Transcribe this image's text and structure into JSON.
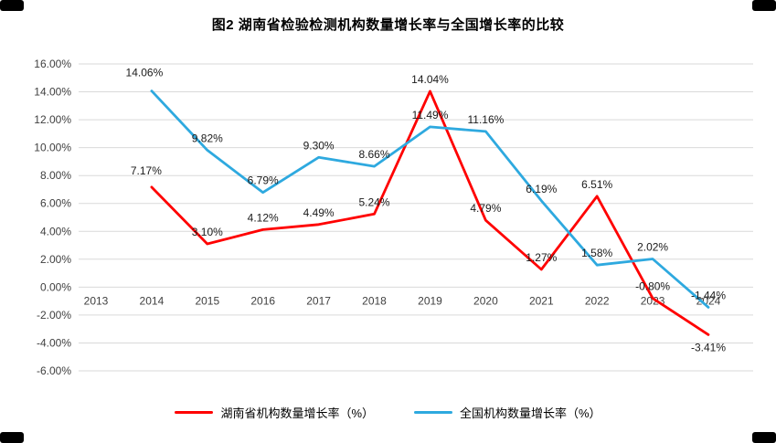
{
  "chart_data": {
    "type": "line",
    "title": "图2 湖南省检验检测机构数量增长率与全国增长率的比较",
    "xlabel": "",
    "ylabel": "",
    "x": [
      "2013",
      "2014",
      "2015",
      "2016",
      "2017",
      "2018",
      "2019",
      "2020",
      "2021",
      "2022",
      "2023",
      "2024"
    ],
    "series": [
      {
        "name": "湖南省机构数量增长率（%）",
        "color": "#FF0000",
        "values": [
          null,
          7.17,
          3.1,
          4.12,
          4.49,
          5.24,
          14.04,
          4.79,
          1.27,
          6.51,
          -0.8,
          -3.41
        ],
        "labels": [
          null,
          "7.17%",
          "3.10%",
          "4.12%",
          "4.49%",
          "5.24%",
          "14.04%",
          "4.79%",
          "1.27%",
          "6.51%",
          "-0.80%",
          "-3.41%"
        ],
        "label_offsets": {
          "1": [
            -6,
            -14
          ],
          "11": [
            0,
            18
          ]
        }
      },
      {
        "name": "全国机构数量增长率（%）",
        "color": "#2EA9DF",
        "values": [
          null,
          14.06,
          9.82,
          6.79,
          9.3,
          8.66,
          11.49,
          11.16,
          6.19,
          1.58,
          2.02,
          -1.44
        ],
        "labels": [
          null,
          "14.06%",
          "9.82%",
          "6.79%",
          "9.30%",
          "8.66%",
          "11.49%",
          "11.16%",
          "6.19%",
          "1.58%",
          "2.02%",
          "-1.44%"
        ],
        "label_offsets": {
          "1": [
            -8,
            -16
          ]
        }
      }
    ],
    "ylim": [
      -6,
      16
    ],
    "ytick_step": 2,
    "ytick_labels": [
      "16.00%",
      "14.00%",
      "12.00%",
      "10.00%",
      "8.00%",
      "6.00%",
      "4.00%",
      "2.00%",
      "0.00%",
      "-2.00%",
      "-4.00%",
      "-6.00%"
    ],
    "grid": true,
    "grid_color": "#D9D9D9",
    "legend_position": "bottom"
  }
}
